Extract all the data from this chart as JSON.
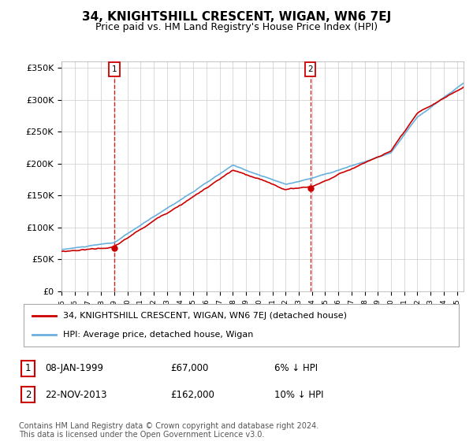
{
  "title": "34, KNIGHTSHILL CRESCENT, WIGAN, WN6 7EJ",
  "subtitle": "Price paid vs. HM Land Registry's House Price Index (HPI)",
  "legend_line1": "34, KNIGHTSHILL CRESCENT, WIGAN, WN6 7EJ (detached house)",
  "legend_line2": "HPI: Average price, detached house, Wigan",
  "annotation1_date": "08-JAN-1999",
  "annotation1_price": "£67,000",
  "annotation1_hpi": "6% ↓ HPI",
  "annotation2_date": "22-NOV-2013",
  "annotation2_price": "£162,000",
  "annotation2_hpi": "10% ↓ HPI",
  "footer": "Contains HM Land Registry data © Crown copyright and database right 2024.\nThis data is licensed under the Open Government Licence v3.0.",
  "ylim": [
    0,
    360000
  ],
  "yticks": [
    0,
    50000,
    100000,
    150000,
    200000,
    250000,
    300000,
    350000
  ],
  "ytick_labels": [
    "£0",
    "£50K",
    "£100K",
    "£150K",
    "£200K",
    "£250K",
    "£300K",
    "£350K"
  ],
  "hpi_color": "#6ab0de",
  "price_color": "#cc0000",
  "background_color": "#ffffff",
  "grid_color": "#cccccc",
  "annotation_box_color": "#cc0000",
  "title_fontsize": 11,
  "subtitle_fontsize": 9,
  "axis_fontsize": 8,
  "legend_fontsize": 8,
  "footer_fontsize": 7,
  "sale1_year": 1999.03,
  "sale1_price": 67000,
  "sale2_year": 2013.87,
  "sale2_price": 162000
}
